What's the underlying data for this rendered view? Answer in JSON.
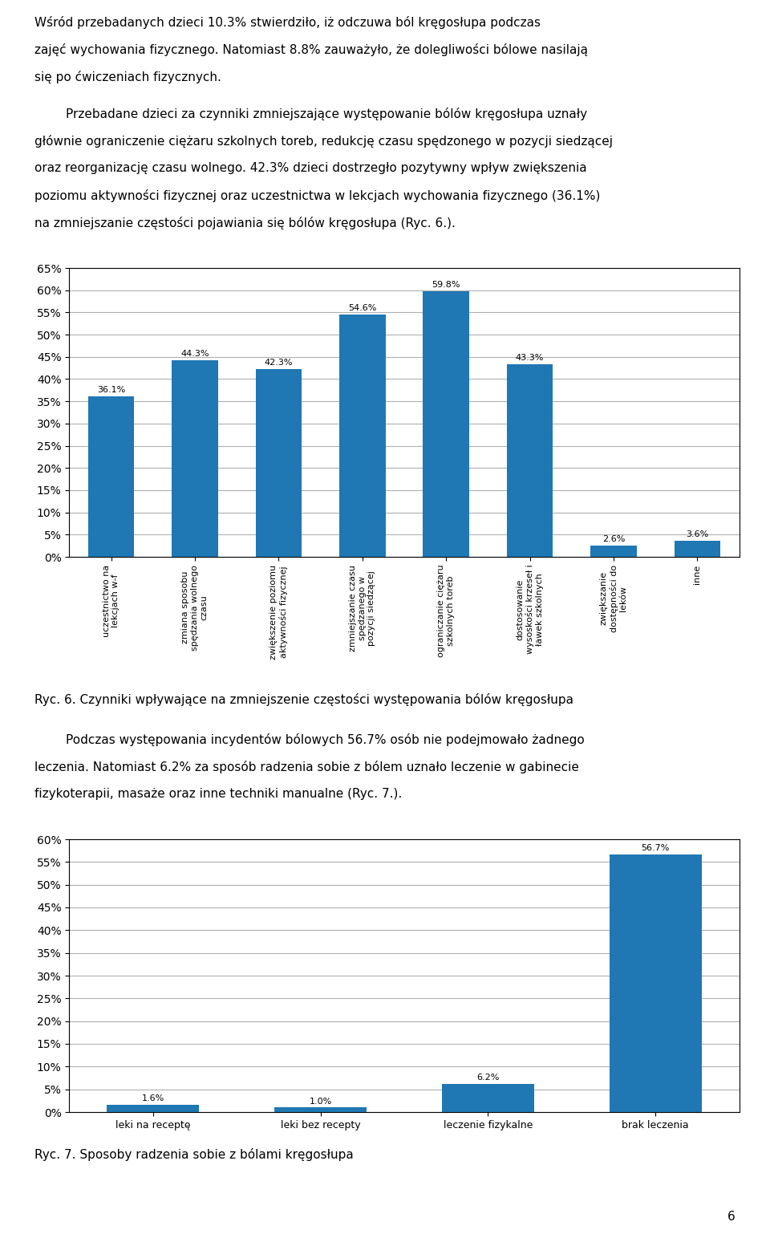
{
  "chart_data": [
    {
      "type": "bar",
      "title": "Ryc. 6. Czynniki wpływające na zmniejszenie częstości występowania bólów kręgosłupa",
      "annotations": [
        "Wśród przebadanych dzieci 10.3% stwierdziło, iż odczuwa ból kręgosłupa podczas",
        "zajęć wychowania fizycznego. Natomiast 8.8% zauważyło, że dolegliwości bólowe nasilają",
        "się po ćwiczeniach fizycznych.",
        "        Przebadane dzieci za czynniki zmniejszające występowanie bólów kręgosłupa uznały",
        "głównie ograniczenie ciężaru szkolnych toreb, redukcję czasu spędzonego w pozycji siedzącej",
        "oraz reorganizację czasu wolnego. 42.3% dzieci dostrzegło pozytywny wpływ zwiększenia",
        "poziomu aktywności fizycznej oraz uczestnictwa w lekcjach wychowania fizycznego (36.1%)",
        "na zmniejszanie częstości pojawiania się bólów kręgosłupa (Ryc. 6.)."
      ],
      "categories": [
        "uczestnictwo na\nlekcjach w-f",
        "zmiana sposobu\nspędzania wolnego\nczasu",
        "zwiększenie poziomu\naktywności fizycznej",
        "zmniejszanie czasu\nspędzanego w\npozycji siedzącej",
        "ograniczanie ciężaru\nszkolnych toreb",
        "dostosowanie\nwysoskości krzeseł i\nławek szkolnych",
        "zwiększanie\ndostępności do\nleków",
        "inne"
      ],
      "values": [
        36.1,
        44.3,
        42.3,
        54.6,
        59.8,
        43.3,
        2.6,
        3.6
      ],
      "value_labels": [
        "36.1%",
        "44.3%",
        "42.3%",
        "54.6%",
        "59.8%",
        "43.3%",
        "2.6%",
        "3.6%"
      ],
      "data_labels": true,
      "ylim": [
        0,
        65
      ],
      "yticks": [
        {
          "value": 0,
          "label": "0%"
        },
        {
          "value": 5,
          "label": "5%"
        },
        {
          "value": 10,
          "label": "10%"
        },
        {
          "value": 15,
          "label": "15%"
        },
        {
          "value": 20,
          "label": "20%"
        },
        {
          "value": 25,
          "label": "25%"
        },
        {
          "value": 30,
          "label": "30%"
        },
        {
          "value": 35,
          "label": "35%"
        },
        {
          "value": 40,
          "label": "40%"
        },
        {
          "value": 45,
          "label": "45%"
        },
        {
          "value": 50,
          "label": "50%"
        },
        {
          "value": 55,
          "label": "55%"
        },
        {
          "value": 60,
          "label": "60%"
        },
        {
          "value": 65,
          "label": "65%"
        }
      ],
      "grid": true
    },
    {
      "type": "bar",
      "title": "Ryc. 7. Sposoby radzenia sobie z bólami kręgosłupa",
      "annotations": [
        "        Podczas występowania incydentów bólowych 56.7% osób nie podejmowało żadnego",
        "leczenia. Natomiast 6.2% za sposób radzenia sobie z bólem uznało leczenie w gabinecie",
        "fizykoterapii, masaże oraz inne techniki manualne (Ryc. 7.)."
      ],
      "categories": [
        "leki na receptę",
        "leki bez recepty",
        "leczenie fizykalne",
        "brak leczenia"
      ],
      "values": [
        1.6,
        1.0,
        6.2,
        56.7
      ],
      "value_labels": [
        "1.6%",
        "1.0%",
        "6.2%",
        "56.7%"
      ],
      "data_labels": true,
      "ylim": [
        0,
        60
      ],
      "yticks": [
        {
          "value": 0,
          "label": "0%"
        },
        {
          "value": 5,
          "label": "5%"
        },
        {
          "value": 10,
          "label": "10%"
        },
        {
          "value": 15,
          "label": "15%"
        },
        {
          "value": 20,
          "label": "20%"
        },
        {
          "value": 25,
          "label": "25%"
        },
        {
          "value": 30,
          "label": "30%"
        },
        {
          "value": 35,
          "label": "35%"
        },
        {
          "value": 40,
          "label": "40%"
        },
        {
          "value": 45,
          "label": "45%"
        },
        {
          "value": 50,
          "label": "50%"
        },
        {
          "value": 55,
          "label": "55%"
        },
        {
          "value": 60,
          "label": "60%"
        }
      ],
      "grid": true
    }
  ],
  "annotations": [
    "6"
  ]
}
